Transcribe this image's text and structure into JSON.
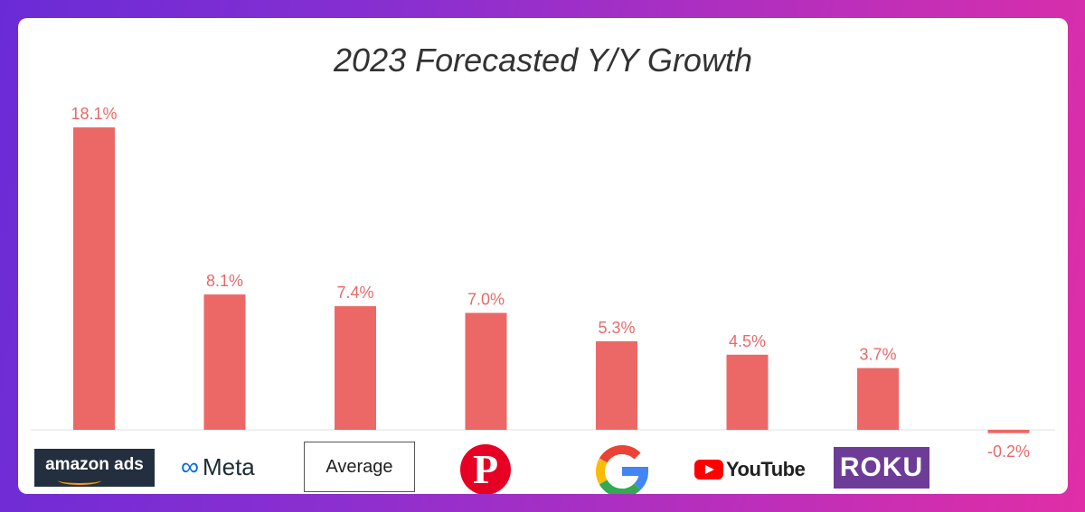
{
  "chart_data": {
    "type": "bar",
    "title": "2023 Forecasted Y/Y Growth",
    "categories": [
      "amazon ads",
      "Meta",
      "Average",
      "Pinterest",
      "Google",
      "YouTube",
      "Roku",
      ""
    ],
    "values": [
      18.1,
      8.1,
      7.4,
      7.0,
      5.3,
      4.5,
      3.7,
      -0.2
    ],
    "value_labels": [
      "18.1%",
      "8.1%",
      "7.4%",
      "7.0%",
      "5.3%",
      "4.5%",
      "3.7%",
      "-0.2%"
    ],
    "bar_color": "#ec6866",
    "label_color": "#e86a6a",
    "xlabel": "",
    "ylabel": "",
    "grid": false,
    "legend": "none"
  },
  "logos": {
    "amazon": {
      "text": "amazon ads",
      "color": "#232f3e",
      "accent": "#ff9900"
    },
    "meta": {
      "text": "Meta",
      "icon": "infinity-icon",
      "icon_color": "#0668e1"
    },
    "average": {
      "text": "Average"
    },
    "pinterest": {
      "letter": "P",
      "color": "#e60023"
    },
    "google": {
      "letter": "G",
      "colors": [
        "#4285f4",
        "#ea4335",
        "#fbbc05",
        "#34a853"
      ]
    },
    "youtube": {
      "text": "YouTube",
      "icon": "play-icon",
      "color": "#ff0000"
    },
    "roku": {
      "text": "ROKU",
      "color": "#6c3c97"
    }
  }
}
